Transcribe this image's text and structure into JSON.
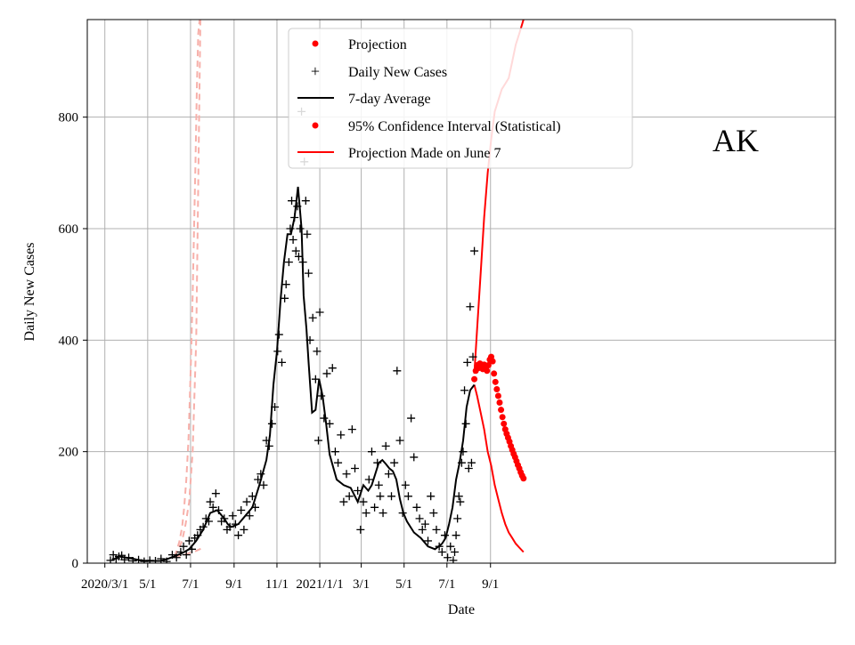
{
  "chart_data": {
    "type": "line",
    "title": "",
    "state_label": "AK",
    "xlabel": "Date",
    "ylabel": "Daily New Cases",
    "ylim": [
      0,
      975
    ],
    "xlim_days": [
      -25,
      1040
    ],
    "y_ticks": [
      0,
      200,
      400,
      600,
      800
    ],
    "x_ticks": [
      {
        "label": "2020/3/1",
        "day": 0
      },
      {
        "label": "5/1",
        "day": 61
      },
      {
        "label": "7/1",
        "day": 122
      },
      {
        "label": "9/1",
        "day": 184
      },
      {
        "label": "11/1",
        "day": 245
      },
      {
        "label": "2021/1/1",
        "day": 306
      },
      {
        "label": "3/1",
        "day": 365
      },
      {
        "label": "5/1",
        "day": 426
      },
      {
        "label": "7/1",
        "day": 487
      },
      {
        "label": "9/1",
        "day": 549
      }
    ],
    "grid": true,
    "legend": {
      "position": "top-center",
      "entries": [
        {
          "label": "Projection",
          "marker": "dot",
          "color": "#ff0000"
        },
        {
          "label": "Daily New Cases",
          "marker": "plus",
          "color": "#000000"
        },
        {
          "label": "7-day Average",
          "marker": "line",
          "color": "#000000"
        },
        {
          "label": "95% Confidence Interval (Statistical)",
          "marker": "dot",
          "color": "#ff0000"
        },
        {
          "label": "Projection Made on June 7",
          "marker": "line",
          "color": "#ff0000"
        }
      ]
    },
    "colors": {
      "cases": "#000000",
      "average": "#000000",
      "projection": "#ff0000",
      "ci": "#ff0000",
      "old_projection": "#f7b0aa"
    },
    "series": [
      {
        "name": "7-day Average",
        "x": [
          10,
          20,
          30,
          40,
          50,
          60,
          70,
          80,
          90,
          100,
          110,
          120,
          130,
          140,
          145,
          150,
          160,
          170,
          175,
          180,
          190,
          200,
          210,
          220,
          230,
          235,
          240,
          245,
          250,
          255,
          260,
          265,
          270,
          275,
          280,
          283,
          287,
          290,
          295,
          300,
          305,
          310,
          315,
          320,
          330,
          340,
          350,
          360,
          368,
          375,
          380,
          390,
          395,
          400,
          405,
          410,
          415,
          420,
          425,
          430,
          440,
          450,
          460,
          470,
          475,
          480,
          485,
          490,
          495,
          500,
          505,
          510,
          515,
          520,
          526
        ],
        "values": [
          5,
          12,
          10,
          8,
          5,
          4,
          4,
          4,
          8,
          13,
          18,
          25,
          40,
          60,
          75,
          90,
          95,
          80,
          70,
          65,
          70,
          85,
          100,
          140,
          185,
          230,
          320,
          380,
          470,
          540,
          590,
          590,
          620,
          675,
          600,
          480,
          420,
          360,
          270,
          275,
          330,
          300,
          250,
          195,
          150,
          140,
          135,
          110,
          140,
          130,
          140,
          180,
          185,
          178,
          170,
          165,
          150,
          115,
          90,
          75,
          55,
          45,
          30,
          25,
          30,
          35,
          45,
          70,
          100,
          150,
          180,
          220,
          280,
          310,
          320
        ]
      },
      {
        "name": "Daily New Cases",
        "x": [
          8,
          12,
          16,
          20,
          24,
          28,
          34,
          40,
          48,
          56,
          64,
          72,
          80,
          88,
          96,
          102,
          108,
          112,
          116,
          120,
          124,
          128,
          132,
          136,
          140,
          144,
          148,
          150,
          154,
          158,
          162,
          166,
          170,
          174,
          178,
          182,
          186,
          190,
          194,
          198,
          202,
          206,
          210,
          214,
          218,
          222,
          226,
          230,
          234,
          238,
          242,
          246,
          248,
          252,
          256,
          258,
          262,
          264,
          266,
          268,
          270,
          272,
          274,
          276,
          278,
          280,
          282,
          284,
          286,
          288,
          290,
          292,
          296,
          300,
          302,
          304,
          306,
          308,
          312,
          316,
          320,
          324,
          328,
          332,
          336,
          340,
          344,
          348,
          352,
          356,
          360,
          364,
          368,
          372,
          376,
          380,
          384,
          388,
          390,
          392,
          396,
          400,
          404,
          408,
          412,
          416,
          420,
          424,
          428,
          432,
          436,
          440,
          444,
          448,
          452,
          456,
          460,
          464,
          468,
          472,
          476,
          480,
          484,
          488,
          492,
          496,
          498,
          500,
          502,
          504,
          506,
          508,
          510,
          512,
          514,
          516,
          518,
          520,
          522,
          524,
          526
        ],
        "values": [
          5,
          15,
          8,
          12,
          14,
          6,
          10,
          4,
          6,
          3,
          5,
          4,
          8,
          3,
          15,
          10,
          20,
          30,
          15,
          40,
          25,
          45,
          50,
          60,
          65,
          80,
          75,
          110,
          100,
          125,
          95,
          75,
          80,
          60,
          65,
          85,
          70,
          50,
          95,
          60,
          110,
          85,
          120,
          100,
          150,
          160,
          140,
          220,
          210,
          250,
          280,
          380,
          410,
          360,
          475,
          500,
          540,
          600,
          650,
          580,
          620,
          560,
          640,
          550,
          600,
          810,
          540,
          720,
          650,
          590,
          520,
          400,
          440,
          330,
          380,
          220,
          450,
          300,
          260,
          340,
          250,
          350,
          200,
          180,
          230,
          110,
          160,
          120,
          240,
          170,
          130,
          60,
          110,
          90,
          150,
          200,
          100,
          180,
          140,
          120,
          90,
          210,
          160,
          120,
          180,
          345,
          220,
          90,
          140,
          120,
          260,
          190,
          100,
          80,
          60,
          70,
          40,
          120,
          90,
          60,
          30,
          20,
          50,
          10,
          30,
          5,
          20,
          50,
          80,
          120,
          110,
          180,
          200,
          310,
          250,
          360,
          170,
          460,
          180,
          370,
          560
        ]
      },
      {
        "name": "Projection",
        "x": [
          526,
          528,
          530,
          532,
          534,
          536,
          538,
          540,
          542,
          544,
          546,
          548,
          550,
          552,
          554,
          556,
          558,
          560,
          562,
          564,
          566,
          568,
          570,
          572,
          574,
          576,
          578,
          580,
          582,
          584,
          586,
          588,
          590,
          592,
          594,
          596
        ],
        "values": [
          330,
          345,
          355,
          350,
          358,
          352,
          348,
          356,
          350,
          345,
          355,
          365,
          370,
          362,
          340,
          325,
          312,
          300,
          288,
          275,
          262,
          250,
          240,
          232,
          225,
          218,
          210,
          203,
          196,
          190,
          183,
          176,
          170,
          163,
          157,
          152
        ]
      },
      {
        "name": "95% CI Upper",
        "x": [
          526,
          530,
          535,
          540,
          545,
          550,
          555,
          560,
          565,
          570,
          575,
          580,
          585,
          590,
          596
        ],
        "values": [
          340,
          420,
          520,
          620,
          700,
          760,
          810,
          830,
          850,
          860,
          870,
          900,
          930,
          950,
          975
        ]
      },
      {
        "name": "95% CI Lower",
        "x": [
          526,
          530,
          535,
          540,
          545,
          550,
          555,
          560,
          565,
          570,
          575,
          580,
          585,
          590,
          596
        ],
        "values": [
          320,
          300,
          270,
          240,
          200,
          175,
          140,
          115,
          90,
          70,
          55,
          45,
          35,
          28,
          20
        ]
      },
      {
        "name": "Projection Made on June 7",
        "x": [
          99,
          102,
          106,
          110,
          113,
          116,
          119,
          121,
          123,
          125,
          127,
          129,
          131,
          133,
          135
        ],
        "values": [
          12,
          22,
          38,
          65,
          100,
          150,
          220,
          300,
          380,
          480,
          600,
          720,
          850,
          950,
          975
        ]
      },
      {
        "name": "June 7 CI Upper",
        "x": [
          99,
          105,
          110,
          115,
          120,
          125,
          130,
          136
        ],
        "values": [
          12,
          25,
          40,
          70,
          110,
          200,
          400,
          975
        ]
      },
      {
        "name": "June 7 CI Lower",
        "x": [
          99,
          110,
          120,
          130,
          140
        ],
        "values": [
          12,
          14,
          18,
          22,
          28
        ]
      }
    ]
  }
}
